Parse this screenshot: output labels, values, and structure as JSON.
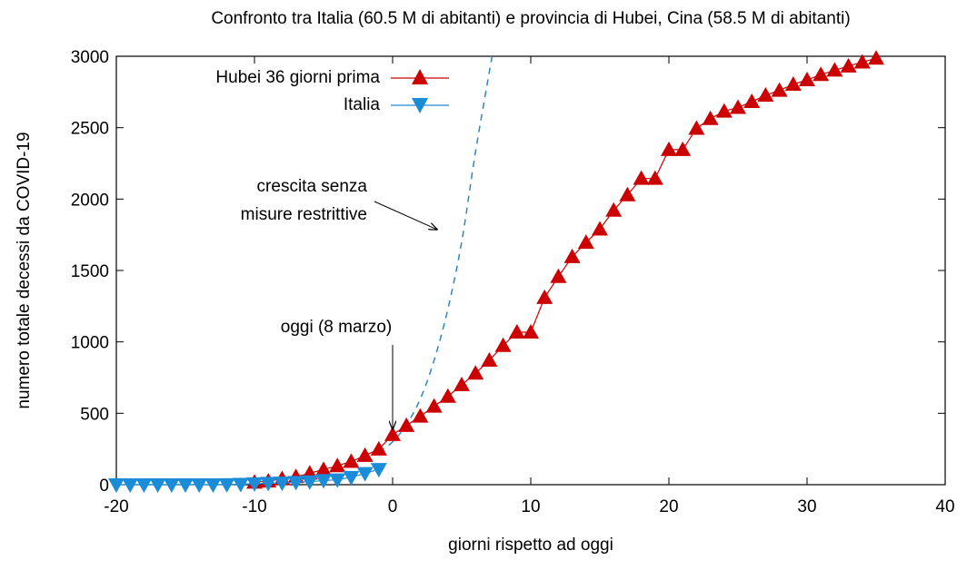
{
  "chart_data": {
    "type": "line",
    "title": "Confronto tra Italia (60.5 M di abitanti) e provincia di Hubei, Cina (58.5 M di abitanti)",
    "xlabel": "giorni rispetto ad oggi",
    "ylabel": "numero totale decessi da COVID-19",
    "xlim": [
      -20,
      40
    ],
    "ylim": [
      0,
      3000
    ],
    "xticks": [
      -20,
      -10,
      0,
      10,
      20,
      30,
      40
    ],
    "yticks": [
      0,
      500,
      1000,
      1500,
      2000,
      2500,
      3000
    ],
    "x_tick_labels": [
      "-20",
      "-10",
      "0",
      "10",
      "20",
      "30",
      "40"
    ],
    "y_tick_labels": [
      "0",
      "500",
      "1000",
      "1500",
      "2000",
      "2500",
      "3000"
    ],
    "grid": false,
    "legend_position": "top-left",
    "series": [
      {
        "name": "Hubei 36 giorni prima",
        "color": "#cc0000",
        "marker": "triangle-up",
        "x": [
          -10,
          -9,
          -8,
          -7,
          -6,
          -5,
          -4,
          -3,
          -2,
          -1,
          0,
          1,
          2,
          3,
          4,
          5,
          6,
          7,
          8,
          9,
          10,
          11,
          12,
          13,
          14,
          15,
          16,
          17,
          18,
          19,
          20,
          21,
          22,
          23,
          24,
          25,
          26,
          27,
          28,
          29,
          30,
          31,
          32,
          33,
          34,
          35
        ],
        "y": [
          17,
          25,
          41,
          56,
          80,
          106,
          132,
          162,
          204,
          249,
          350,
          414,
          479,
          549,
          618,
          699,
          780,
          871,
          974,
          1068,
          1068,
          1310,
          1457,
          1596,
          1696,
          1789,
          1921,
          2029,
          2144,
          2144,
          2346,
          2346,
          2495,
          2563,
          2615,
          2641,
          2682,
          2727,
          2761,
          2803,
          2835,
          2871,
          2902,
          2931,
          2959,
          2986
        ]
      },
      {
        "name": "Italia",
        "color": "#1a8cd8",
        "marker": "triangle-down",
        "x": [
          -20,
          -19,
          -18,
          -17,
          -16,
          -15,
          -14,
          -13,
          -12,
          -11,
          -10,
          -9,
          -8,
          -7,
          -6,
          -5,
          -4,
          -3,
          -2,
          -1
        ],
        "y": [
          0,
          0,
          0,
          0,
          0,
          0,
          0,
          0,
          1,
          3,
          7,
          10,
          12,
          17,
          21,
          29,
          34,
          52,
          79,
          107
        ]
      },
      {
        "name": "",
        "color": "#2e86c1",
        "style": "dashed",
        "x": [
          -1,
          0,
          1,
          2,
          3,
          4,
          5,
          6,
          7.2
        ],
        "y": [
          230,
          300,
          420,
          600,
          870,
          1230,
          1700,
          2330,
          3000
        ]
      }
    ],
    "annotations": [
      {
        "text_lines": [
          "crescita senza",
          "misure restrittive"
        ],
        "arrow_to": [
          4,
          1800
        ]
      },
      {
        "text": "oggi (8 marzo)",
        "arrow_to": [
          0,
          390
        ]
      }
    ]
  }
}
